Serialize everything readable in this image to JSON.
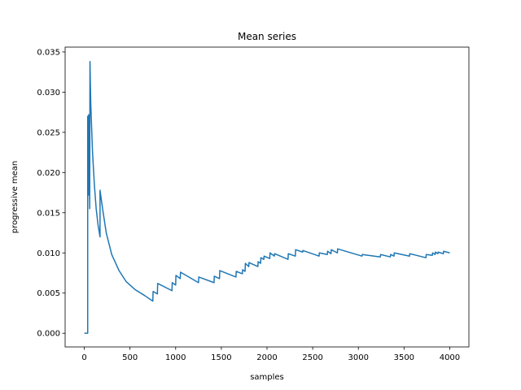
{
  "chart_data": {
    "type": "line",
    "title": "Mean series",
    "xlabel": "samples",
    "ylabel": "progressive mean",
    "xlim": [
      -210,
      4210
    ],
    "ylim": [
      -0.0017,
      0.0356
    ],
    "xticks": [
      0,
      500,
      1000,
      1500,
      2000,
      2500,
      3000,
      3500,
      4000
    ],
    "xtick_labels": [
      "0",
      "500",
      "1000",
      "1500",
      "2000",
      "2500",
      "3000",
      "3500",
      "4000"
    ],
    "yticks": [
      0.0,
      0.005,
      0.01,
      0.015,
      0.02,
      0.025,
      0.03,
      0.035
    ],
    "ytick_labels": [
      "0.000",
      "0.005",
      "0.010",
      "0.015",
      "0.020",
      "0.025",
      "0.030",
      "0.035"
    ],
    "grid": false,
    "legend": "none",
    "series": [
      {
        "color": "#1f77b4",
        "x": [
          1,
          37,
          37,
          48,
          48,
          59,
          62,
          70,
          90,
          110,
          130,
          150,
          172,
          172,
          200,
          240,
          300,
          380,
          460,
          560,
          660,
          750,
          753,
          800,
          803,
          960,
          962,
          1000,
          1003,
          1050,
          1053,
          1250,
          1253,
          1420,
          1423,
          1480,
          1483,
          1660,
          1663,
          1730,
          1733,
          1760,
          1763,
          1800,
          1803,
          1900,
          1903,
          1930,
          1933,
          1965,
          1968,
          2030,
          2033,
          2080,
          2083,
          2230,
          2233,
          2310,
          2313,
          2390,
          2393,
          2570,
          2573,
          2660,
          2663,
          2700,
          2703,
          2770,
          2773,
          3040,
          3043,
          3240,
          3243,
          3350,
          3353,
          3390,
          3393,
          3560,
          3563,
          3740,
          3743,
          3810,
          3813,
          3840,
          3843,
          3870,
          3873,
          3930,
          3933,
          4000
        ],
        "y": [
          0.0,
          0.0,
          0.027,
          0.0172,
          0.0272,
          0.0155,
          0.0338,
          0.0288,
          0.0225,
          0.0185,
          0.0155,
          0.0135,
          0.012,
          0.0178,
          0.0155,
          0.0125,
          0.0098,
          0.0078,
          0.0064,
          0.0054,
          0.0047,
          0.004,
          0.0052,
          0.0049,
          0.0062,
          0.0053,
          0.0063,
          0.006,
          0.0072,
          0.0068,
          0.0076,
          0.0063,
          0.007,
          0.0063,
          0.0071,
          0.0068,
          0.0078,
          0.007,
          0.0077,
          0.0074,
          0.0079,
          0.0077,
          0.0087,
          0.0083,
          0.0088,
          0.0083,
          0.0089,
          0.0087,
          0.0094,
          0.0092,
          0.0096,
          0.0093,
          0.01,
          0.0096,
          0.0099,
          0.0092,
          0.0099,
          0.0096,
          0.0104,
          0.0101,
          0.0103,
          0.0096,
          0.01,
          0.0098,
          0.0102,
          0.0099,
          0.0104,
          0.01,
          0.0105,
          0.0096,
          0.0098,
          0.0095,
          0.0098,
          0.0095,
          0.0098,
          0.0096,
          0.01,
          0.0096,
          0.0099,
          0.0094,
          0.0098,
          0.0097,
          0.01,
          0.0098,
          0.0101,
          0.0099,
          0.0101,
          0.0099,
          0.0102,
          0.01
        ]
      }
    ]
  }
}
